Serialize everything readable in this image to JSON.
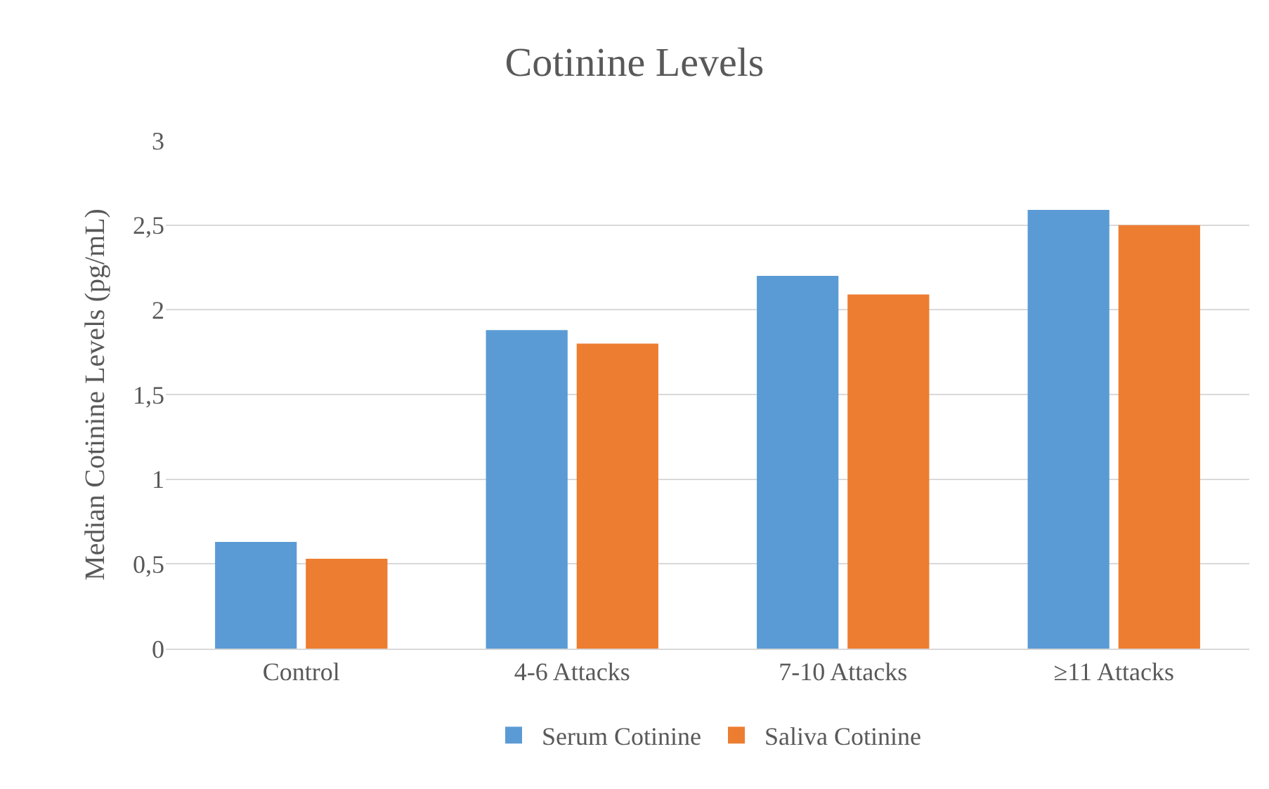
{
  "chart_data": {
    "type": "bar",
    "title": "Cotinine Levels",
    "ylabel": "Median Cotinine Levels (pg/mL)",
    "categories": [
      "Control",
      "4-6 Attacks",
      "7-10 Attacks",
      "≥11 Attacks"
    ],
    "series": [
      {
        "name": "Serum Cotinine",
        "color": "#5b9bd5",
        "values": [
          0.63,
          1.88,
          2.2,
          2.59
        ]
      },
      {
        "name": "Saliva Cotinine",
        "color": "#ed7d31",
        "values": [
          0.53,
          1.8,
          2.09,
          2.5
        ]
      }
    ],
    "ylim": [
      0,
      3
    ],
    "yticks": [
      0,
      {
        "value": 0.5,
        "label": "0,5"
      },
      1,
      {
        "value": 1.5,
        "label": "1,5"
      },
      2,
      {
        "value": 2.5,
        "label": "2,5"
      },
      3
    ],
    "grid": "y",
    "legend": "bottom"
  }
}
